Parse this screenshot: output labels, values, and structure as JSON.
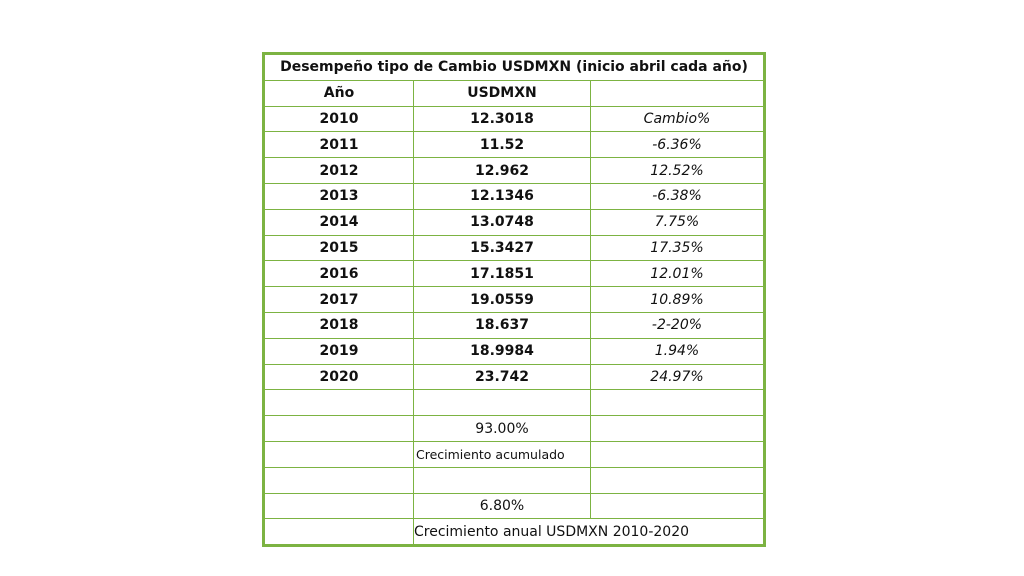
{
  "table": {
    "title": "Desempeño tipo de Cambio USDMXN (inicio abril cada año)",
    "header": {
      "year": "Año",
      "rate": "USDMXN",
      "change": ""
    },
    "rows": [
      {
        "year": "2010",
        "rate": "12.3018",
        "change": "Cambio%"
      },
      {
        "year": "2011",
        "rate": "11.52",
        "change": "-6.36%"
      },
      {
        "year": "2012",
        "rate": "12.962",
        "change": "12.52%"
      },
      {
        "year": "2013",
        "rate": "12.1346",
        "change": "-6.38%"
      },
      {
        "year": "2014",
        "rate": "13.0748",
        "change": "7.75%"
      },
      {
        "year": "2015",
        "rate": "15.3427",
        "change": "17.35%"
      },
      {
        "year": "2016",
        "rate": "17.1851",
        "change": "12.01%"
      },
      {
        "year": "2017",
        "rate": "19.0559",
        "change": "10.89%"
      },
      {
        "year": "2018",
        "rate": "18.637",
        "change": "-2-20%"
      },
      {
        "year": "2019",
        "rate": "18.9984",
        "change": "1.94%"
      },
      {
        "year": "2020",
        "rate": "23.742",
        "change": "24.97%"
      }
    ],
    "summary": {
      "cumulative_value": "93.00%",
      "cumulative_label": "Crecimiento acumulado",
      "annual_value": "6.80%",
      "annual_label": "Crecimiento anual USDMXN 2010-2020"
    }
  }
}
